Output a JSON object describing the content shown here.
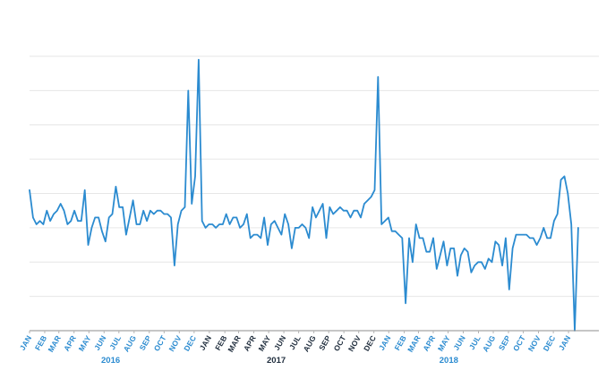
{
  "colors": {
    "series": "#2b8bd0",
    "tick_2016": "#2b8bd0",
    "tick_2017": "#1f2d3d",
    "tick_2018": "#2b8bd0",
    "year_2016": "#2b8bd0",
    "year_2017": "#1f2d3d",
    "year_2018": "#2b8bd0"
  },
  "chart_data": {
    "type": "line",
    "title": "",
    "xlabel": "",
    "ylabel": "",
    "grid": true,
    "y_axis_labels_shown": false,
    "ylim": [
      0,
      80
    ],
    "x_unit": "weeks from first week of January 2016",
    "xlim": [
      0,
      165
    ],
    "month_ticks": [
      {
        "x": 0,
        "label": "JAN",
        "year": "2016"
      },
      {
        "x": 4.4,
        "label": "FEB",
        "year": "2016"
      },
      {
        "x": 8.5,
        "label": "MAR",
        "year": "2016"
      },
      {
        "x": 12.9,
        "label": "APR",
        "year": "2016"
      },
      {
        "x": 17.2,
        "label": "MAY",
        "year": "2016"
      },
      {
        "x": 21.6,
        "label": "JUN",
        "year": "2016"
      },
      {
        "x": 25.9,
        "label": "JUL",
        "year": "2016"
      },
      {
        "x": 30.3,
        "label": "AUG",
        "year": "2016"
      },
      {
        "x": 34.7,
        "label": "SEP",
        "year": "2016"
      },
      {
        "x": 39.0,
        "label": "OCT",
        "year": "2016"
      },
      {
        "x": 43.4,
        "label": "NOV",
        "year": "2016"
      },
      {
        "x": 47.7,
        "label": "DEC",
        "year": "2016"
      },
      {
        "x": 52.1,
        "label": "JAN",
        "year": "2017"
      },
      {
        "x": 56.6,
        "label": "FEB",
        "year": "2017"
      },
      {
        "x": 60.6,
        "label": "MAR",
        "year": "2017"
      },
      {
        "x": 65.0,
        "label": "APR",
        "year": "2017"
      },
      {
        "x": 69.3,
        "label": "MAY",
        "year": "2017"
      },
      {
        "x": 73.7,
        "label": "JUN",
        "year": "2017"
      },
      {
        "x": 78.0,
        "label": "JUL",
        "year": "2017"
      },
      {
        "x": 82.4,
        "label": "AUG",
        "year": "2017"
      },
      {
        "x": 86.7,
        "label": "SEP",
        "year": "2017"
      },
      {
        "x": 91.1,
        "label": "OCT",
        "year": "2017"
      },
      {
        "x": 95.4,
        "label": "NOV",
        "year": "2017"
      },
      {
        "x": 99.8,
        "label": "DEC",
        "year": "2017"
      },
      {
        "x": 104.1,
        "label": "JAN",
        "year": "2018"
      },
      {
        "x": 108.6,
        "label": "FEB",
        "year": "2018"
      },
      {
        "x": 112.7,
        "label": "MAR",
        "year": "2018"
      },
      {
        "x": 117.0,
        "label": "APR",
        "year": "2018"
      },
      {
        "x": 121.3,
        "label": "MAY",
        "year": "2018"
      },
      {
        "x": 125.7,
        "label": "JUN",
        "year": "2018"
      },
      {
        "x": 130.1,
        "label": "JUL",
        "year": "2018"
      },
      {
        "x": 134.4,
        "label": "AUG",
        "year": "2018"
      },
      {
        "x": 138.8,
        "label": "SEP",
        "year": "2018"
      },
      {
        "x": 143.1,
        "label": "OCT",
        "year": "2018"
      },
      {
        "x": 147.5,
        "label": "NOV",
        "year": "2018"
      },
      {
        "x": 151.8,
        "label": "DEC",
        "year": "2018"
      },
      {
        "x": 156.2,
        "label": "JAN",
        "year": "2019"
      }
    ],
    "year_labels": [
      {
        "label": "2016",
        "x": 23.5
      },
      {
        "label": "2017",
        "x": 71.5
      },
      {
        "label": "2018",
        "x": 121.5
      }
    ],
    "series": [
      {
        "values": [
          [
            0,
            41
          ],
          [
            1,
            33
          ],
          [
            2,
            31
          ],
          [
            3,
            32
          ],
          [
            4,
            31
          ],
          [
            5,
            35
          ],
          [
            6,
            32
          ],
          [
            7,
            34
          ],
          [
            8,
            35
          ],
          [
            9,
            37
          ],
          [
            10,
            35
          ],
          [
            11,
            31
          ],
          [
            12,
            32
          ],
          [
            13,
            35
          ],
          [
            14,
            32
          ],
          [
            15,
            32
          ],
          [
            16,
            41
          ],
          [
            17,
            25
          ],
          [
            18,
            30
          ],
          [
            19,
            33
          ],
          [
            20,
            33
          ],
          [
            21,
            29
          ],
          [
            22,
            26
          ],
          [
            23,
            33
          ],
          [
            24,
            34
          ],
          [
            25,
            42
          ],
          [
            26,
            36
          ],
          [
            27,
            36
          ],
          [
            28,
            28
          ],
          [
            29,
            33
          ],
          [
            30,
            38
          ],
          [
            31,
            31
          ],
          [
            32,
            31
          ],
          [
            33,
            35
          ],
          [
            34,
            32
          ],
          [
            35,
            35
          ],
          [
            36,
            34
          ],
          [
            37,
            35
          ],
          [
            38,
            35
          ],
          [
            39,
            34
          ],
          [
            40,
            34
          ],
          [
            41,
            33
          ],
          [
            42,
            19
          ],
          [
            43,
            31
          ],
          [
            44,
            35
          ],
          [
            45,
            36
          ],
          [
            46,
            70
          ],
          [
            47,
            37
          ],
          [
            48,
            45
          ],
          [
            49,
            79
          ],
          [
            50,
            32
          ],
          [
            51,
            30
          ],
          [
            52,
            31
          ],
          [
            53,
            31
          ],
          [
            54,
            30
          ],
          [
            55,
            31
          ],
          [
            56,
            31
          ],
          [
            57,
            34
          ],
          [
            58,
            31
          ],
          [
            59,
            33
          ],
          [
            60,
            33
          ],
          [
            61,
            30
          ],
          [
            62,
            31
          ],
          [
            63,
            34
          ],
          [
            64,
            27
          ],
          [
            65,
            28
          ],
          [
            66,
            28
          ],
          [
            67,
            27
          ],
          [
            68,
            33
          ],
          [
            69,
            25
          ],
          [
            70,
            31
          ],
          [
            71,
            32
          ],
          [
            72,
            30
          ],
          [
            73,
            28
          ],
          [
            74,
            34
          ],
          [
            75,
            31
          ],
          [
            76,
            24
          ],
          [
            77,
            30
          ],
          [
            78,
            30
          ],
          [
            79,
            31
          ],
          [
            80,
            30
          ],
          [
            81,
            27
          ],
          [
            82,
            36
          ],
          [
            83,
            33
          ],
          [
            84,
            35
          ],
          [
            85,
            37
          ],
          [
            86,
            27
          ],
          [
            87,
            36
          ],
          [
            88,
            34
          ],
          [
            89,
            35
          ],
          [
            90,
            36
          ],
          [
            91,
            35
          ],
          [
            92,
            35
          ],
          [
            93,
            33
          ],
          [
            94,
            35
          ],
          [
            95,
            35
          ],
          [
            96,
            33
          ],
          [
            97,
            37
          ],
          [
            98,
            38
          ],
          [
            99,
            39
          ],
          [
            100,
            41
          ],
          [
            101,
            74
          ],
          [
            102,
            31
          ],
          [
            103,
            32
          ],
          [
            104,
            33
          ],
          [
            105,
            29
          ],
          [
            106,
            29
          ],
          [
            107,
            28
          ],
          [
            108,
            27
          ],
          [
            109,
            8
          ],
          [
            110,
            27
          ],
          [
            111,
            20
          ],
          [
            112,
            31
          ],
          [
            113,
            27
          ],
          [
            114,
            27
          ],
          [
            115,
            23
          ],
          [
            116,
            23
          ],
          [
            117,
            27
          ],
          [
            118,
            18
          ],
          [
            119,
            22
          ],
          [
            120,
            26
          ],
          [
            121,
            19
          ],
          [
            122,
            24
          ],
          [
            123,
            24
          ],
          [
            124,
            16
          ],
          [
            125,
            22
          ],
          [
            126,
            24
          ],
          [
            127,
            23
          ],
          [
            128,
            17
          ],
          [
            129,
            19
          ],
          [
            130,
            20
          ],
          [
            131,
            20
          ],
          [
            132,
            18
          ],
          [
            133,
            21
          ],
          [
            134,
            20
          ],
          [
            135,
            26
          ],
          [
            136,
            25
          ],
          [
            137,
            19
          ],
          [
            138,
            27
          ],
          [
            139,
            12
          ],
          [
            140,
            24
          ],
          [
            141,
            28
          ],
          [
            142,
            28
          ],
          [
            143,
            28
          ],
          [
            144,
            28
          ],
          [
            145,
            27
          ],
          [
            146,
            27
          ],
          [
            147,
            25
          ],
          [
            148,
            27
          ],
          [
            149,
            30
          ],
          [
            150,
            27
          ],
          [
            151,
            27
          ],
          [
            152,
            32
          ],
          [
            153,
            34
          ],
          [
            154,
            44
          ],
          [
            155,
            45
          ],
          [
            156,
            40
          ],
          [
            157,
            31
          ],
          [
            158,
            0
          ],
          [
            159,
            30
          ]
        ]
      }
    ]
  }
}
